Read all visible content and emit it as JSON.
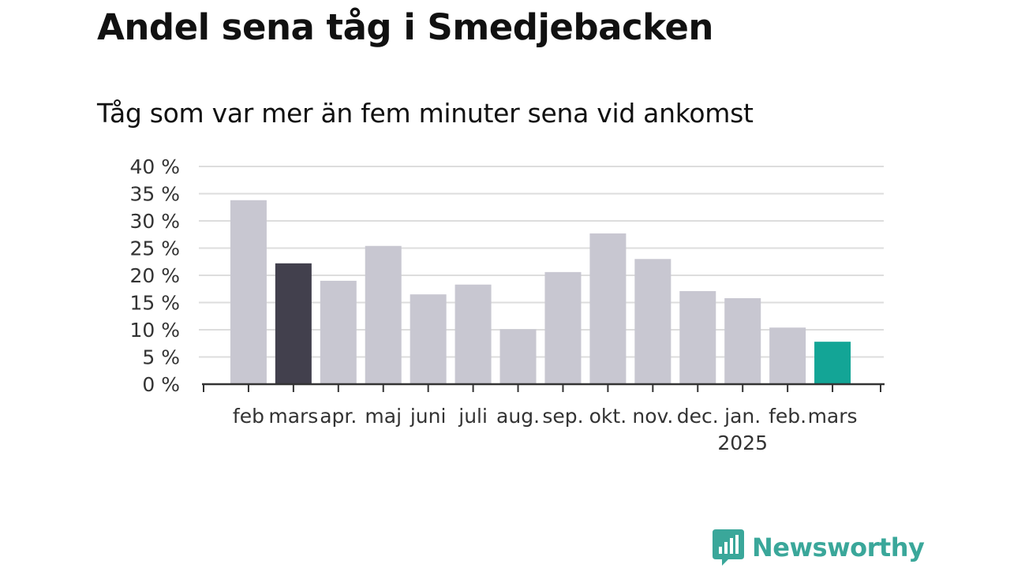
{
  "header": {
    "title": "Andel sena tåg i Smedjebacken",
    "subtitle": "Tåg som var mer än fem minuter sena vid ankomst"
  },
  "brand": {
    "name": "Newsworthy",
    "icon": "newsworthy-logo-icon",
    "color": "#3aa79a"
  },
  "chart_data": {
    "type": "bar",
    "categories": [
      "feb",
      "mars",
      "apr.",
      "maj",
      "juni",
      "juli",
      "aug.",
      "sep.",
      "okt.",
      "nov.",
      "dec.",
      "jan.",
      "feb.",
      "mars"
    ],
    "year_label": {
      "text": "2025",
      "category_index": 11
    },
    "values": [
      33.8,
      22.2,
      19.0,
      25.4,
      16.5,
      18.3,
      10.1,
      20.6,
      27.7,
      23.0,
      17.1,
      15.8,
      10.4,
      7.8
    ],
    "highlight": {
      "1": "#42404d",
      "13": "#13a596"
    },
    "bar_color": "#c8c7d1",
    "ylim": [
      0,
      40
    ],
    "yticks": [
      0,
      5,
      10,
      15,
      20,
      25,
      30,
      35,
      40
    ],
    "y_tick_suffix": " %",
    "grid": true,
    "legend": "none",
    "title": "Andel sena tåg i Smedjebacken",
    "subtitle": "Tåg som var mer än fem minuter sena vid ankomst",
    "xlabel": "",
    "ylabel": ""
  }
}
